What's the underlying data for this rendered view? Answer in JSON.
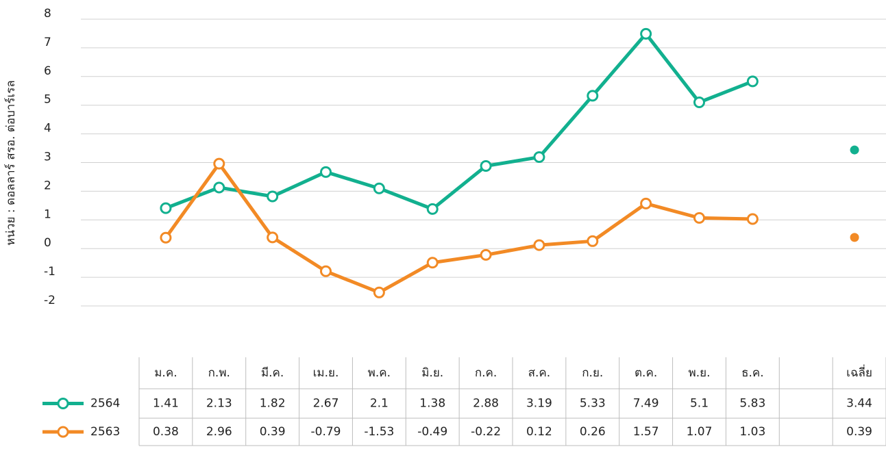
{
  "chart_data": {
    "type": "line",
    "y_label": "หน่วย : ดอลลาร์ สรอ. ต่อบาร์เรล",
    "categories": [
      "ม.ค.",
      "ก.พ.",
      "มี.ค.",
      "เม.ย.",
      "พ.ค.",
      "มิ.ย.",
      "ก.ค.",
      "ส.ค.",
      "ก.ย.",
      "ต.ค.",
      "พ.ย.",
      "ธ.ค.",
      null,
      "เฉลี่ย"
    ],
    "series": [
      {
        "name": "2564",
        "color": "#12b08f",
        "values": [
          1.41,
          2.13,
          1.82,
          2.67,
          2.1,
          1.38,
          2.88,
          3.19,
          5.33,
          7.49,
          5.1,
          5.83,
          null,
          3.44
        ]
      },
      {
        "name": "2563",
        "color": "#f28a25",
        "values": [
          0.38,
          2.96,
          0.39,
          -0.79,
          -1.53,
          -0.49,
          -0.22,
          0.12,
          0.26,
          1.57,
          1.07,
          1.03,
          null,
          0.39
        ]
      }
    ],
    "ylim": [
      -2,
      8
    ],
    "yticks": [
      8,
      7,
      6,
      5,
      4,
      3,
      2,
      1,
      0,
      -1,
      -2
    ],
    "grid": true
  }
}
